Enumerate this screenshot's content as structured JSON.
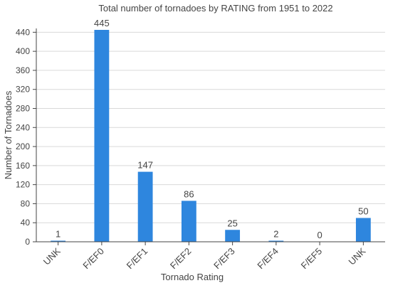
{
  "chart_data": {
    "type": "bar",
    "title": "Total number of tornadoes by RATING from 1951 to 2022",
    "xlabel": "Tornado Rating",
    "ylabel": "Number of Tornadoes",
    "categories": [
      "UNK",
      "F/EF0",
      "F/EF1",
      "F/EF2",
      "F/EF3",
      "F/EF4",
      "F/EF5",
      "UNK"
    ],
    "values": [
      1,
      445,
      147,
      86,
      25,
      2,
      0,
      50
    ],
    "ylim": [
      0,
      448
    ],
    "yticks": [
      0,
      40,
      80,
      120,
      160,
      200,
      240,
      280,
      320,
      360,
      400,
      440
    ],
    "grid": true,
    "bar_color": "#2e86de",
    "legend": "none"
  }
}
